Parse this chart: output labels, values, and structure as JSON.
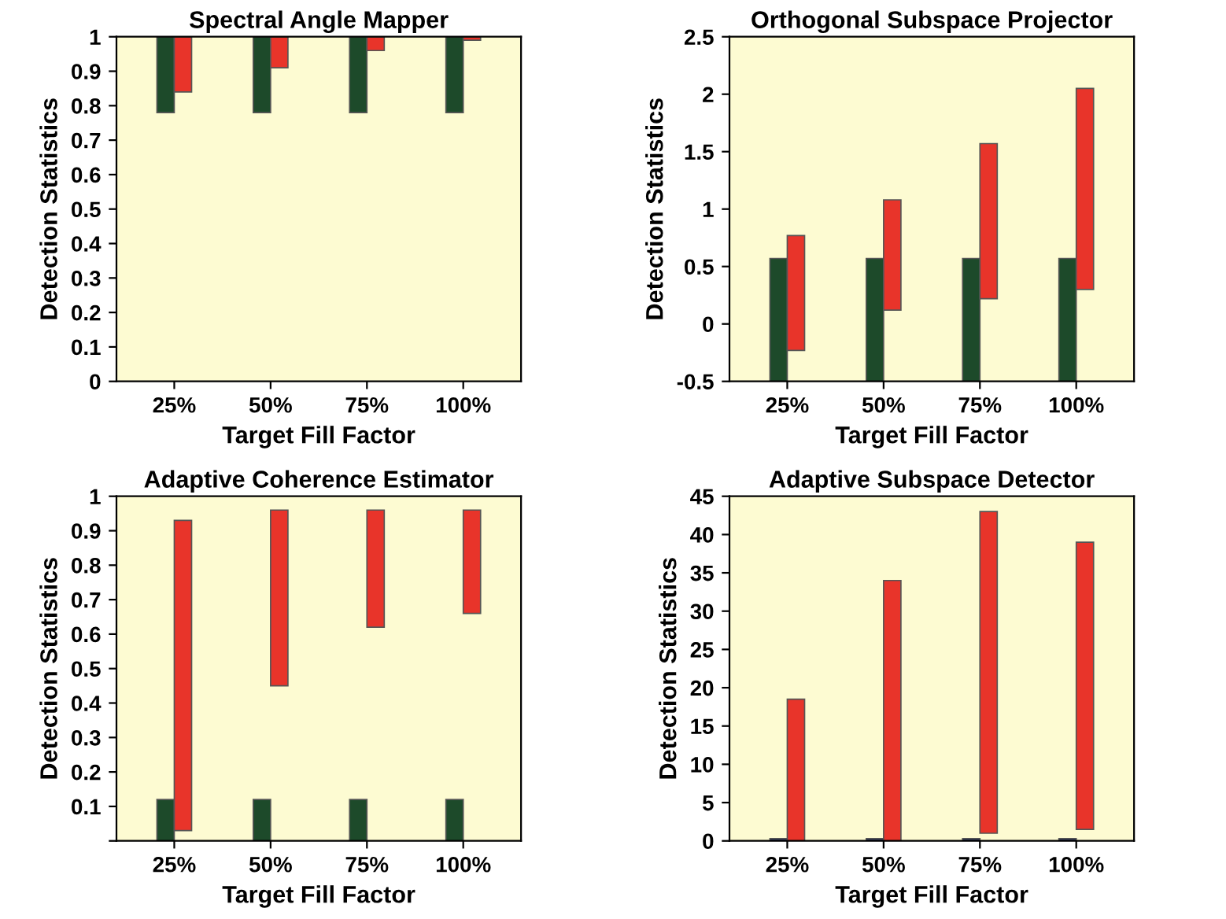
{
  "chart_data": [
    {
      "type": "bar",
      "title": "Spectral Angle Mapper",
      "xlabel": "Target Fill Factor",
      "ylabel": "Detection Statistics",
      "categories": [
        "25%",
        "50%",
        "75%",
        "100%"
      ],
      "ylim": [
        0,
        1
      ],
      "yticks": [
        0,
        0.1,
        0.2,
        0.3,
        0.4,
        0.5,
        0.6,
        0.7,
        0.8,
        0.9,
        1
      ],
      "grid": false,
      "series": [
        {
          "color": "#1d4a2a",
          "values": [
            0.22,
            0.22,
            0.22,
            0.22
          ],
          "base": [
            0.78,
            0.78,
            0.78,
            0.78
          ]
        },
        {
          "color": "#e8342a",
          "values": [
            0.16,
            0.09,
            0.04,
            0.01
          ],
          "base": [
            0.84,
            0.91,
            0.96,
            0.99
          ]
        }
      ]
    },
    {
      "type": "bar",
      "title": "Orthogonal Subspace Projector",
      "xlabel": "Target Fill Factor",
      "ylabel": "Detection Statistics",
      "categories": [
        "25%",
        "50%",
        "75%",
        "100%"
      ],
      "ylim": [
        -0.5,
        2.5
      ],
      "yticks": [
        -0.5,
        0,
        0.5,
        1,
        1.5,
        2,
        2.5
      ],
      "grid": false,
      "series": [
        {
          "color": "#1d4a2a",
          "values": [
            1.07,
            1.07,
            1.07,
            1.07
          ],
          "base": [
            -0.5,
            -0.5,
            -0.5,
            -0.5
          ]
        },
        {
          "color": "#e8342a",
          "values": [
            1.0,
            0.96,
            1.35,
            1.75
          ],
          "base": [
            -0.23,
            0.12,
            0.22,
            0.3
          ]
        }
      ]
    },
    {
      "type": "bar",
      "title": "Adaptive Coherence Estimator",
      "xlabel": "Target Fill Factor",
      "ylabel": "Detection Statistics",
      "categories": [
        "25%",
        "50%",
        "75%",
        "100%"
      ],
      "ylim": [
        0,
        1
      ],
      "yticks": [
        {
          "value": 0,
          "label": null
        },
        0.1,
        0.2,
        0.3,
        0.4,
        0.5,
        0.6,
        0.7,
        0.8,
        0.9,
        1
      ],
      "grid": false,
      "series": [
        {
          "color": "#1d4a2a",
          "values": [
            0.12,
            0.12,
            0.12,
            0.12
          ],
          "base": [
            0,
            0,
            0,
            0
          ]
        },
        {
          "color": "#e8342a",
          "values": [
            0.9,
            0.51,
            0.34,
            0.3
          ],
          "base": [
            0.03,
            0.45,
            0.62,
            0.66
          ]
        }
      ]
    },
    {
      "type": "bar",
      "title": "Adaptive Subspace Detector",
      "xlabel": "Target Fill Factor",
      "ylabel": "Detection Statistics",
      "categories": [
        "25%",
        "50%",
        "75%",
        "100%"
      ],
      "ylim": [
        0,
        45
      ],
      "yticks": [
        0,
        5,
        10,
        15,
        20,
        25,
        30,
        35,
        40,
        45
      ],
      "grid": false,
      "series": [
        {
          "color": "#1d2a5a",
          "values": [
            0.3,
            0.3,
            0.3,
            0.3
          ],
          "base": [
            0,
            0,
            0,
            0
          ]
        },
        {
          "color": "#e8342a",
          "values": [
            18.5,
            34,
            42,
            37.5
          ],
          "base": [
            0,
            0,
            1,
            1.5
          ]
        }
      ]
    }
  ]
}
